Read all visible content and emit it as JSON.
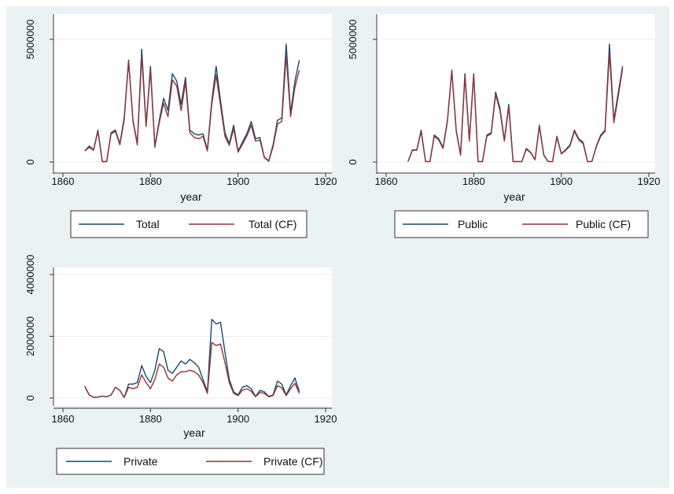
{
  "colors": {
    "page_bg": "#ffffff",
    "panel_bg": "#eaf2f3",
    "plot_bg": "#ffffff",
    "grid": "#e8ecec",
    "axis": "#333333",
    "series_a": "#1a476f",
    "series_b": "#90353b"
  },
  "chart_data": [
    {
      "type": "line",
      "xlabel": "year",
      "xlim": [
        1860,
        1920
      ],
      "xticks": [
        "1860",
        "1880",
        "1900",
        "1920"
      ],
      "xtick_values": [
        1860,
        1880,
        1900,
        1920
      ],
      "ylim": [
        0,
        5000000
      ],
      "yticks": [
        "0",
        "5000000"
      ],
      "ytick_values": [
        0,
        5000000
      ],
      "grid": "horizontal",
      "legend_position": "bottom",
      "x": [
        1865,
        1866,
        1867,
        1868,
        1869,
        1870,
        1871,
        1872,
        1873,
        1874,
        1875,
        1876,
        1877,
        1878,
        1879,
        1880,
        1881,
        1882,
        1883,
        1884,
        1885,
        1886,
        1887,
        1888,
        1889,
        1890,
        1891,
        1892,
        1893,
        1894,
        1895,
        1896,
        1897,
        1898,
        1899,
        1900,
        1901,
        1902,
        1903,
        1904,
        1905,
        1906,
        1907,
        1908,
        1909,
        1910,
        1911,
        1912,
        1913,
        1914
      ],
      "series": [
        {
          "name": "Total",
          "values": [
            450000,
            650000,
            500000,
            1300000,
            20000,
            20000,
            1200000,
            1300000,
            750000,
            1800000,
            4150000,
            1700000,
            750000,
            4600000,
            1500000,
            3900000,
            650000,
            1700000,
            2600000,
            2100000,
            3600000,
            3300000,
            2350000,
            3450000,
            1300000,
            1150000,
            1100000,
            1150000,
            500000,
            2500000,
            3900000,
            2500000,
            1200000,
            750000,
            1500000,
            450000,
            800000,
            1150000,
            1650000,
            950000,
            1000000,
            200000,
            50000,
            700000,
            1700000,
            1800000,
            4800000,
            2000000,
            3300000,
            4150000
          ]
        },
        {
          "name": "Total (CF)",
          "values": [
            450000,
            600000,
            480000,
            1250000,
            20000,
            20000,
            1150000,
            1250000,
            700000,
            1700000,
            4100000,
            1650000,
            700000,
            4300000,
            1450000,
            3750000,
            600000,
            1600000,
            2400000,
            1850000,
            3350000,
            3100000,
            2100000,
            3250000,
            1200000,
            1000000,
            950000,
            1050000,
            450000,
            2350000,
            3550000,
            2300000,
            1050000,
            680000,
            1350000,
            400000,
            720000,
            1050000,
            1500000,
            850000,
            900000,
            180000,
            30000,
            620000,
            1550000,
            1650000,
            4350000,
            1850000,
            3050000,
            3750000
          ]
        }
      ]
    },
    {
      "type": "line",
      "xlabel": "year",
      "xlim": [
        1860,
        1920
      ],
      "xticks": [
        "1860",
        "1880",
        "1900",
        "1920"
      ],
      "xtick_values": [
        1860,
        1880,
        1900,
        1920
      ],
      "ylim": [
        0,
        5000000
      ],
      "yticks": [
        "0",
        "5000000"
      ],
      "ytick_values": [
        0,
        5000000
      ],
      "grid": "horizontal",
      "legend_position": "bottom",
      "x": [
        1865,
        1866,
        1867,
        1868,
        1869,
        1870,
        1871,
        1872,
        1873,
        1874,
        1875,
        1876,
        1877,
        1878,
        1879,
        1880,
        1881,
        1882,
        1883,
        1884,
        1885,
        1886,
        1887,
        1888,
        1889,
        1890,
        1891,
        1892,
        1893,
        1894,
        1895,
        1896,
        1897,
        1898,
        1899,
        1900,
        1901,
        1902,
        1903,
        1904,
        1905,
        1906,
        1907,
        1908,
        1909,
        1910,
        1911,
        1912,
        1913,
        1914
      ],
      "series": [
        {
          "name": "Public",
          "values": [
            20000,
            500000,
            500000,
            1300000,
            20000,
            20000,
            1100000,
            950000,
            600000,
            1700000,
            3750000,
            1300000,
            300000,
            3600000,
            900000,
            3600000,
            20000,
            20000,
            1100000,
            1200000,
            2850000,
            2200000,
            900000,
            2350000,
            20000,
            20000,
            20000,
            550000,
            400000,
            100000,
            1500000,
            300000,
            20000,
            20000,
            1050000,
            350000,
            500000,
            700000,
            1300000,
            950000,
            800000,
            20000,
            20000,
            650000,
            1100000,
            1300000,
            4800000,
            1700000,
            2800000,
            3900000
          ]
        },
        {
          "name": "Public (CF)",
          "values": [
            20000,
            480000,
            480000,
            1250000,
            20000,
            20000,
            1050000,
            900000,
            550000,
            1650000,
            3700000,
            1250000,
            280000,
            3500000,
            850000,
            3550000,
            20000,
            20000,
            1050000,
            1150000,
            2750000,
            2100000,
            850000,
            2250000,
            20000,
            20000,
            20000,
            520000,
            380000,
            90000,
            1450000,
            280000,
            20000,
            20000,
            1000000,
            330000,
            470000,
            660000,
            1250000,
            900000,
            750000,
            20000,
            20000,
            620000,
            1050000,
            1250000,
            4450000,
            1600000,
            2650000,
            3800000
          ]
        }
      ]
    },
    {
      "type": "line",
      "xlabel": "year",
      "xlim": [
        1860,
        1920
      ],
      "xticks": [
        "1860",
        "1880",
        "1900",
        "1920"
      ],
      "xtick_values": [
        1860,
        1880,
        1900,
        1920
      ],
      "ylim": [
        0,
        4000000
      ],
      "yticks": [
        "0",
        "2000000",
        "4000000"
      ],
      "ytick_values": [
        0,
        2000000,
        4000000
      ],
      "grid": "horizontal",
      "legend_position": "bottom",
      "x": [
        1865,
        1866,
        1867,
        1868,
        1869,
        1870,
        1871,
        1872,
        1873,
        1874,
        1875,
        1876,
        1877,
        1878,
        1879,
        1880,
        1881,
        1882,
        1883,
        1884,
        1885,
        1886,
        1887,
        1888,
        1889,
        1890,
        1891,
        1892,
        1893,
        1894,
        1895,
        1896,
        1897,
        1898,
        1899,
        1900,
        1901,
        1902,
        1903,
        1904,
        1905,
        1906,
        1907,
        1908,
        1909,
        1910,
        1911,
        1912,
        1913,
        1914
      ],
      "series": [
        {
          "name": "Private",
          "values": [
            380000,
            100000,
            20000,
            30000,
            60000,
            40000,
            100000,
            350000,
            250000,
            20000,
            450000,
            450000,
            500000,
            1050000,
            700000,
            500000,
            900000,
            1600000,
            1500000,
            900000,
            800000,
            1000000,
            1200000,
            1100000,
            1250000,
            1150000,
            1000000,
            600000,
            200000,
            2550000,
            2400000,
            2450000,
            1500000,
            600000,
            200000,
            100000,
            350000,
            400000,
            300000,
            50000,
            250000,
            200000,
            50000,
            100000,
            550000,
            450000,
            100000,
            400000,
            650000,
            200000
          ]
        },
        {
          "name": "Private (CF)",
          "values": [
            380000,
            100000,
            20000,
            30000,
            60000,
            40000,
            100000,
            350000,
            250000,
            20000,
            350000,
            300000,
            350000,
            750000,
            500000,
            300000,
            600000,
            1100000,
            1000000,
            650000,
            550000,
            750000,
            850000,
            850000,
            900000,
            850000,
            750000,
            500000,
            150000,
            1800000,
            1700000,
            1750000,
            1150000,
            500000,
            150000,
            80000,
            250000,
            300000,
            220000,
            40000,
            180000,
            150000,
            40000,
            80000,
            400000,
            330000,
            80000,
            300000,
            480000,
            150000
          ]
        }
      ]
    }
  ]
}
